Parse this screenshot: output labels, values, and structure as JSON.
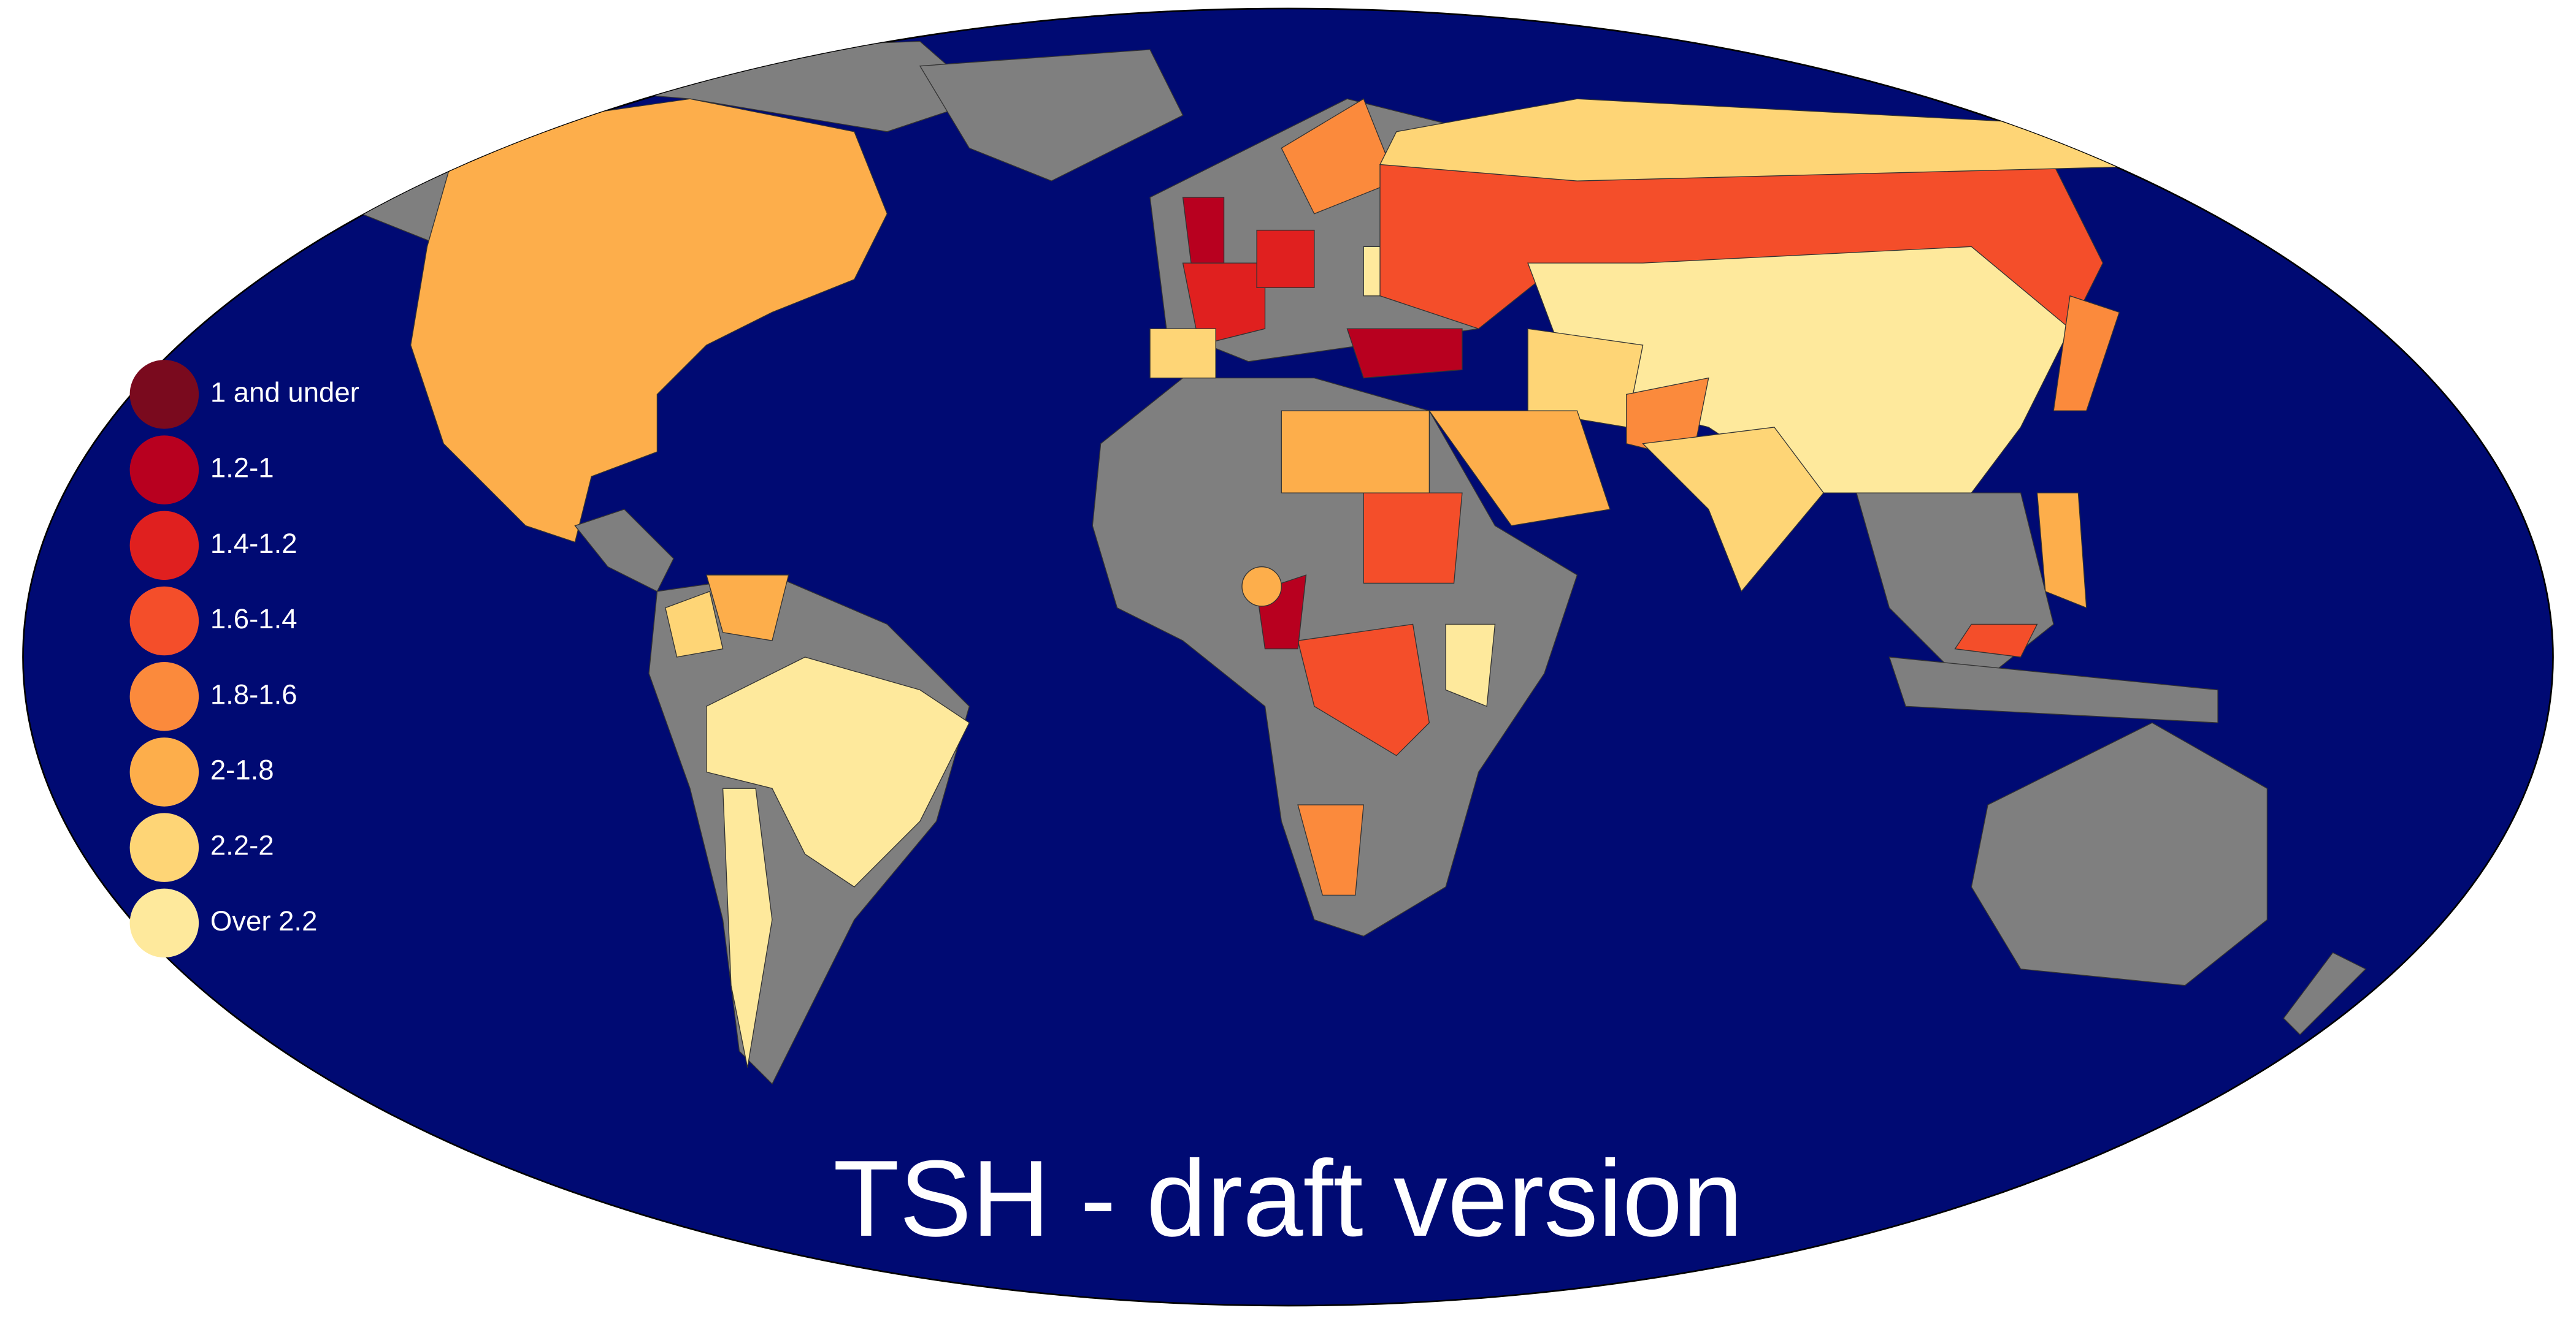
{
  "map": {
    "title": "TSH - draft version",
    "legend": [
      {
        "label": "1 and under",
        "color": "#7a0a1e"
      },
      {
        "label": "1.2-1",
        "color": "#b8001f"
      },
      {
        "label": "1.4-1.2",
        "color": "#e0201f"
      },
      {
        "label": "1.6-1.4",
        "color": "#f44e2a"
      },
      {
        "label": "1.8-1.6",
        "color": "#fb8a3c"
      },
      {
        "label": "2-1.8",
        "color": "#fdae4b"
      },
      {
        "label": "2.2-2",
        "color": "#fed576"
      },
      {
        "label": "Over 2.2",
        "color": "#fee99c"
      }
    ]
  }
}
